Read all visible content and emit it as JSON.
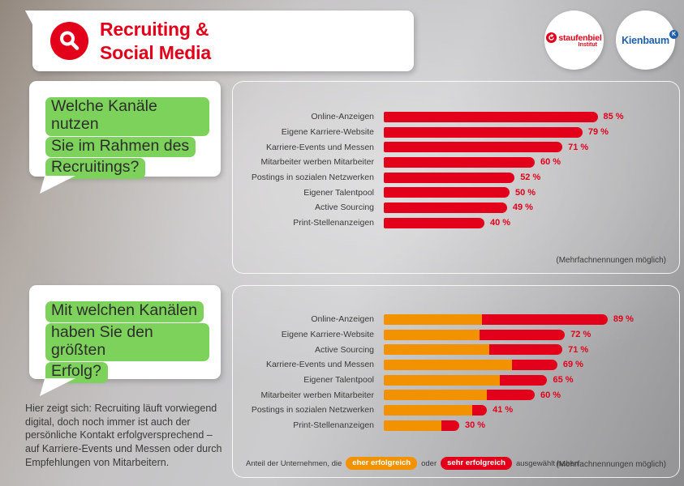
{
  "colors": {
    "red": "#e2001a",
    "orange": "#f39200",
    "green_highlight": "#7dd25b",
    "kienbaum_blue": "#1f5fa9",
    "label_text": "#3a3a39"
  },
  "header": {
    "title_line1": "Recruiting &",
    "title_line2": "Social Media",
    "logos": {
      "staufenbiel": {
        "text": "staufenbiel",
        "subtext": "Institut"
      },
      "kienbaum": {
        "text": "Kienbaum",
        "badge": "K"
      }
    }
  },
  "question1": {
    "lines": [
      "Welche Kanäle nutzen",
      "Sie im Rahmen des",
      "Recruitings?"
    ]
  },
  "question2": {
    "lines": [
      "Mit welchen Kanälen",
      "haben Sie den größten",
      "Erfolg?"
    ]
  },
  "legend": {
    "prefix": "Anteil der Unternehmen, die",
    "badge1": "eher erfolgreich",
    "middle": "oder",
    "badge2": "sehr erfolgreich",
    "suffix": "ausgewählt haben"
  },
  "bottom_text": "Hier zeigt sich: Recruiting läuft vorwiegend digital, doch noch immer ist auch der persönliche Kontakt erfolgversprechend – auf Karriere-Events und Messen oder durch Empfehlungen von Mitarbeitern.",
  "chart_data": [
    {
      "type": "bar",
      "orientation": "horizontal",
      "title": "Welche Kanäle nutzen Sie im Rahmen des Recruitings?",
      "categories": [
        "Online-Anzeigen",
        "Eigene Karriere-Website",
        "Karriere-Events und Messen",
        "Mitarbeiter werben Mitarbeiter",
        "Postings in sozialen Netzwerken",
        "Eigener Talentpool",
        "Active Sourcing",
        "Print-Stellenanzeigen"
      ],
      "values": [
        85,
        79,
        71,
        60,
        52,
        50,
        49,
        40
      ],
      "unit": "%",
      "value_suffix": " %",
      "bar_color": "#e2001a",
      "xlim": [
        0,
        100
      ],
      "grid": false,
      "footnote": "(Mehrfachnennungen möglich)"
    },
    {
      "type": "bar",
      "orientation": "horizontal",
      "stacked": true,
      "title": "Mit welchen Kanälen haben Sie den größten Erfolg?",
      "categories": [
        "Online-Anzeigen",
        "Eigene Karriere-Website",
        "Active Sourcing",
        "Karriere-Events und Messen",
        "Eigener Talentpool",
        "Mitarbeiter werben Mitarbeiter",
        "Postings in sozialen Netzwerken",
        "Print-Stellenanzeigen"
      ],
      "series": [
        {
          "name": "eher erfolgreich",
          "color": "#f39200",
          "values": [
            39,
            38,
            42,
            51,
            46,
            41,
            35,
            23
          ]
        },
        {
          "name": "sehr erfolgreich",
          "color": "#e2001a",
          "values": [
            50,
            34,
            29,
            18,
            19,
            19,
            6,
            7
          ]
        }
      ],
      "totals": [
        89,
        72,
        71,
        69,
        65,
        60,
        41,
        30
      ],
      "unit": "%",
      "value_suffix": " %",
      "xlim": [
        0,
        100
      ],
      "grid": false,
      "legend_note": "Anteil der Unternehmen, die eher erfolgreich oder sehr erfolgreich ausgewählt haben",
      "footnote": "(Mehrfachnennungen möglich)"
    }
  ]
}
